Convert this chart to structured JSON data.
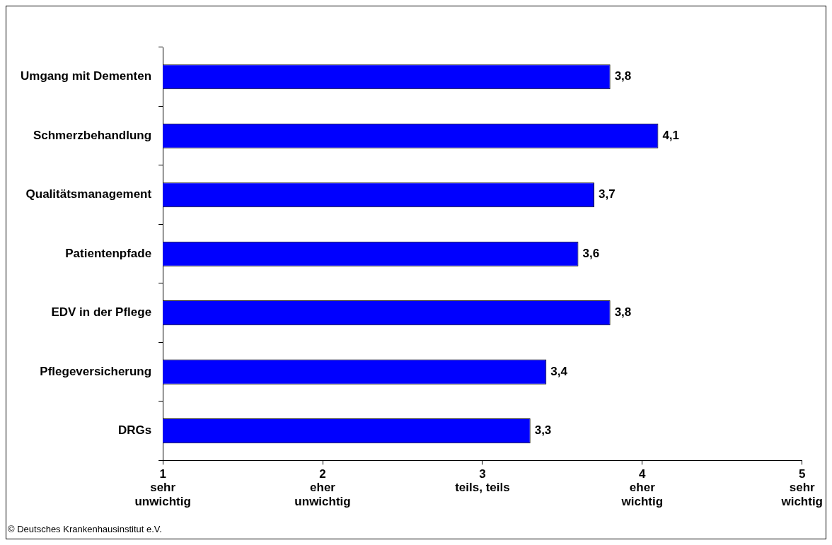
{
  "chart_data": {
    "type": "bar",
    "orientation": "horizontal",
    "categories": [
      "Umgang mit Dementen",
      "Schmerzbehandlung",
      "Qualitätsmanagement",
      "Patientenpfade",
      "EDV in der Pflege",
      "Pflegeversicherung",
      "DRGs"
    ],
    "values": [
      3.8,
      4.1,
      3.7,
      3.6,
      3.8,
      3.4,
      3.3
    ],
    "value_labels": [
      "3,8",
      "4,1",
      "3,7",
      "3,6",
      "3,8",
      "3,4",
      "3,3"
    ],
    "color": "#0000ff",
    "xlim": [
      1,
      5
    ],
    "xticks": [
      {
        "value": 1,
        "label": "1\nsehr\nunwichtig"
      },
      {
        "value": 2,
        "label": "2\neher\nunwichtig"
      },
      {
        "value": 3,
        "label": "3\nteils, teils"
      },
      {
        "value": 4,
        "label": "4\neher\nwichtig"
      },
      {
        "value": 5,
        "label": "5\nsehr\nwichtig"
      }
    ],
    "grid": false,
    "legend": false,
    "annotations": [
      "© Deutsches Krankenhausinstitut e.V."
    ]
  }
}
